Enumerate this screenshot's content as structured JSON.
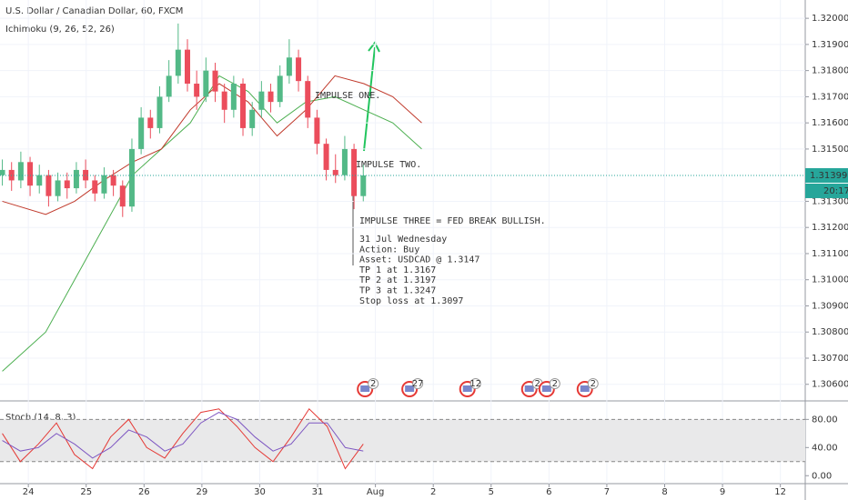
{
  "chart_data": {
    "type": "candlestick",
    "title": "U.S. Dollar / Canadian Dollar, 60, FXCM",
    "indicator_label": "Ichimoku (9, 26, 52, 26)",
    "x": [
      -0.45,
      -0.29,
      -0.13,
      0.03,
      0.19,
      0.35,
      0.51,
      0.67,
      0.83,
      0.99,
      1.15,
      1.31,
      1.47,
      1.63,
      1.79,
      1.95,
      2.11,
      2.27,
      2.43,
      2.59,
      2.75,
      2.91,
      3.07,
      3.23,
      3.39,
      3.55,
      3.71,
      3.87,
      4.03,
      4.19,
      4.35,
      4.51,
      4.67,
      4.83,
      4.99,
      5.15,
      5.31,
      5.47,
      5.63,
      5.79
    ],
    "open": [
      1.314,
      1.3142,
      1.3138,
      1.3145,
      1.3136,
      1.314,
      1.3132,
      1.3138,
      1.3135,
      1.3142,
      1.3138,
      1.3133,
      1.314,
      1.3136,
      1.3128,
      1.315,
      1.3162,
      1.3158,
      1.317,
      1.3178,
      1.3188,
      1.3175,
      1.317,
      1.318,
      1.3172,
      1.3165,
      1.3175,
      1.3158,
      1.3165,
      1.3172,
      1.3168,
      1.3178,
      1.3185,
      1.3176,
      1.3162,
      1.3152,
      1.3142,
      1.314,
      1.315,
      1.3132
    ],
    "high": [
      1.3146,
      1.3145,
      1.3149,
      1.3147,
      1.3144,
      1.3142,
      1.3141,
      1.3141,
      1.3145,
      1.3146,
      1.314,
      1.3143,
      1.3142,
      1.3138,
      1.3154,
      1.3166,
      1.3165,
      1.3174,
      1.3184,
      1.3198,
      1.3192,
      1.318,
      1.3185,
      1.3183,
      1.3175,
      1.3178,
      1.3177,
      1.3168,
      1.3176,
      1.3175,
      1.3182,
      1.3192,
      1.3188,
      1.3178,
      1.3165,
      1.3154,
      1.3148,
      1.3155,
      1.3152,
      1.3144
    ],
    "low": [
      1.3136,
      1.3134,
      1.3135,
      1.3132,
      1.3133,
      1.3128,
      1.313,
      1.3131,
      1.3133,
      1.3135,
      1.313,
      1.3131,
      1.3132,
      1.3124,
      1.3126,
      1.3148,
      1.3154,
      1.3156,
      1.3168,
      1.3175,
      1.3172,
      1.3165,
      1.3168,
      1.3168,
      1.316,
      1.3162,
      1.3155,
      1.3155,
      1.3162,
      1.3164,
      1.3166,
      1.3175,
      1.3172,
      1.3158,
      1.3148,
      1.3138,
      1.3137,
      1.3138,
      1.3127,
      1.313
    ],
    "close": [
      1.3142,
      1.3138,
      1.3145,
      1.3136,
      1.314,
      1.3132,
      1.3138,
      1.3135,
      1.3142,
      1.3138,
      1.3133,
      1.314,
      1.3136,
      1.3128,
      1.315,
      1.3162,
      1.3158,
      1.317,
      1.3178,
      1.3188,
      1.3175,
      1.317,
      1.318,
      1.3172,
      1.3165,
      1.3175,
      1.3158,
      1.3165,
      1.3172,
      1.3168,
      1.3178,
      1.3185,
      1.3176,
      1.3162,
      1.3152,
      1.3142,
      1.314,
      1.315,
      1.3132,
      1.31399
    ],
    "up_color": "#53b987",
    "down_color": "#eb4d5c",
    "xlim": [
      -0.49,
      13.43
    ],
    "xticks": [
      {
        "value": 0,
        "label": "24"
      },
      {
        "value": 1,
        "label": "25"
      },
      {
        "value": 2,
        "label": "26"
      },
      {
        "value": 3,
        "label": "29"
      },
      {
        "value": 4,
        "label": "30"
      },
      {
        "value": 5,
        "label": "31"
      },
      {
        "value": 6,
        "label": "Aug"
      },
      {
        "value": 7,
        "label": "2"
      },
      {
        "value": 8,
        "label": "5"
      },
      {
        "value": 9,
        "label": "6"
      },
      {
        "value": 10,
        "label": "7"
      },
      {
        "value": 11,
        "label": "8"
      },
      {
        "value": 12,
        "label": "9"
      },
      {
        "value": 13,
        "label": "12"
      }
    ],
    "ylim": [
      1.3054,
      1.3207
    ],
    "yticks": [
      {
        "value": 1.306,
        "label": "1.30600"
      },
      {
        "value": 1.307,
        "label": "1.30700"
      },
      {
        "value": 1.308,
        "label": "1.30800"
      },
      {
        "value": 1.309,
        "label": "1.30900"
      },
      {
        "value": 1.31,
        "label": "1.31000"
      },
      {
        "value": 1.311,
        "label": "1.31100"
      },
      {
        "value": 1.312,
        "label": "1.31200"
      },
      {
        "value": 1.313,
        "label": "1.31300"
      },
      {
        "value": 1.315,
        "label": "1.31500"
      },
      {
        "value": 1.316,
        "label": "1.31600"
      },
      {
        "value": 1.317,
        "label": "1.31700"
      },
      {
        "value": 1.318,
        "label": "1.31800"
      },
      {
        "value": 1.319,
        "label": "1.31900"
      },
      {
        "value": 1.32,
        "label": "1.32000"
      }
    ],
    "last_price": 1.31399,
    "countdown": "20:17",
    "ichimoku": {
      "x": [
        -0.45,
        0.3,
        0.8,
        1.3,
        1.8,
        2.3,
        2.8,
        3.3,
        3.8,
        4.3,
        4.8,
        5.3,
        5.8,
        6.3,
        6.8
      ],
      "series": [
        {
          "color": "#4caf50",
          "values": [
            1.3065,
            1.308,
            1.31,
            1.312,
            1.314,
            1.315,
            1.316,
            1.3178,
            1.3172,
            1.316,
            1.3168,
            1.317,
            1.3165,
            1.316,
            1.315
          ]
        },
        {
          "color": "#c0392b",
          "values": [
            1.313,
            1.3125,
            1.313,
            1.3138,
            1.3145,
            1.315,
            1.3165,
            1.3175,
            1.3168,
            1.3155,
            1.3165,
            1.3178,
            1.3175,
            1.317,
            1.316
          ]
        }
      ]
    },
    "annotations": [
      {
        "text": "IMPULSE ONE.",
        "color": "#f5a623"
      },
      {
        "text": "IMPULSE TWO.",
        "color": "#9c6ade"
      }
    ],
    "note_title": "IMPULSE THREE = FED BREAK BULLISH.",
    "note_lines": [
      "31 Jul Wednesday",
      "Action: Buy",
      "Asset: USDCAD @ 1.3147",
      "TP 1 at 1.3167",
      "TP 2 at 1.3197",
      "TP 3 at 1.3247",
      "Stop loss at 1.3097"
    ],
    "events": {
      "x": [
        5.82,
        6.59,
        7.59,
        8.66,
        8.96,
        9.62
      ],
      "labels": [
        "2",
        "27",
        "12",
        "2",
        "2",
        "2"
      ]
    },
    "stochastic": {
      "label": "Stoch (14, 8, 3)",
      "x": [
        -0.45,
        -0.138,
        0.174,
        0.486,
        0.798,
        1.11,
        1.422,
        1.734,
        2.046,
        2.358,
        2.67,
        2.982,
        3.294,
        3.606,
        3.918,
        4.23,
        4.542,
        4.854,
        5.166,
        5.478,
        5.79
      ],
      "series": [
        {
          "color": "#e53935",
          "values": [
            60,
            20,
            45,
            75,
            30,
            10,
            55,
            80,
            40,
            25,
            60,
            90,
            95,
            70,
            40,
            20,
            55,
            95,
            70,
            10,
            45
          ]
        },
        {
          "color": "#7e57c2",
          "values": [
            50,
            35,
            40,
            60,
            45,
            25,
            40,
            65,
            55,
            35,
            45,
            75,
            90,
            80,
            55,
            35,
            45,
            75,
            75,
            40,
            35
          ]
        }
      ],
      "ylim": [
        -10,
        105
      ],
      "yticks": [
        {
          "value": 0,
          "label": "0.00"
        },
        {
          "value": 40,
          "label": "40.00"
        },
        {
          "value": 80,
          "label": "80.00"
        }
      ],
      "band": [
        20,
        80
      ]
    }
  }
}
